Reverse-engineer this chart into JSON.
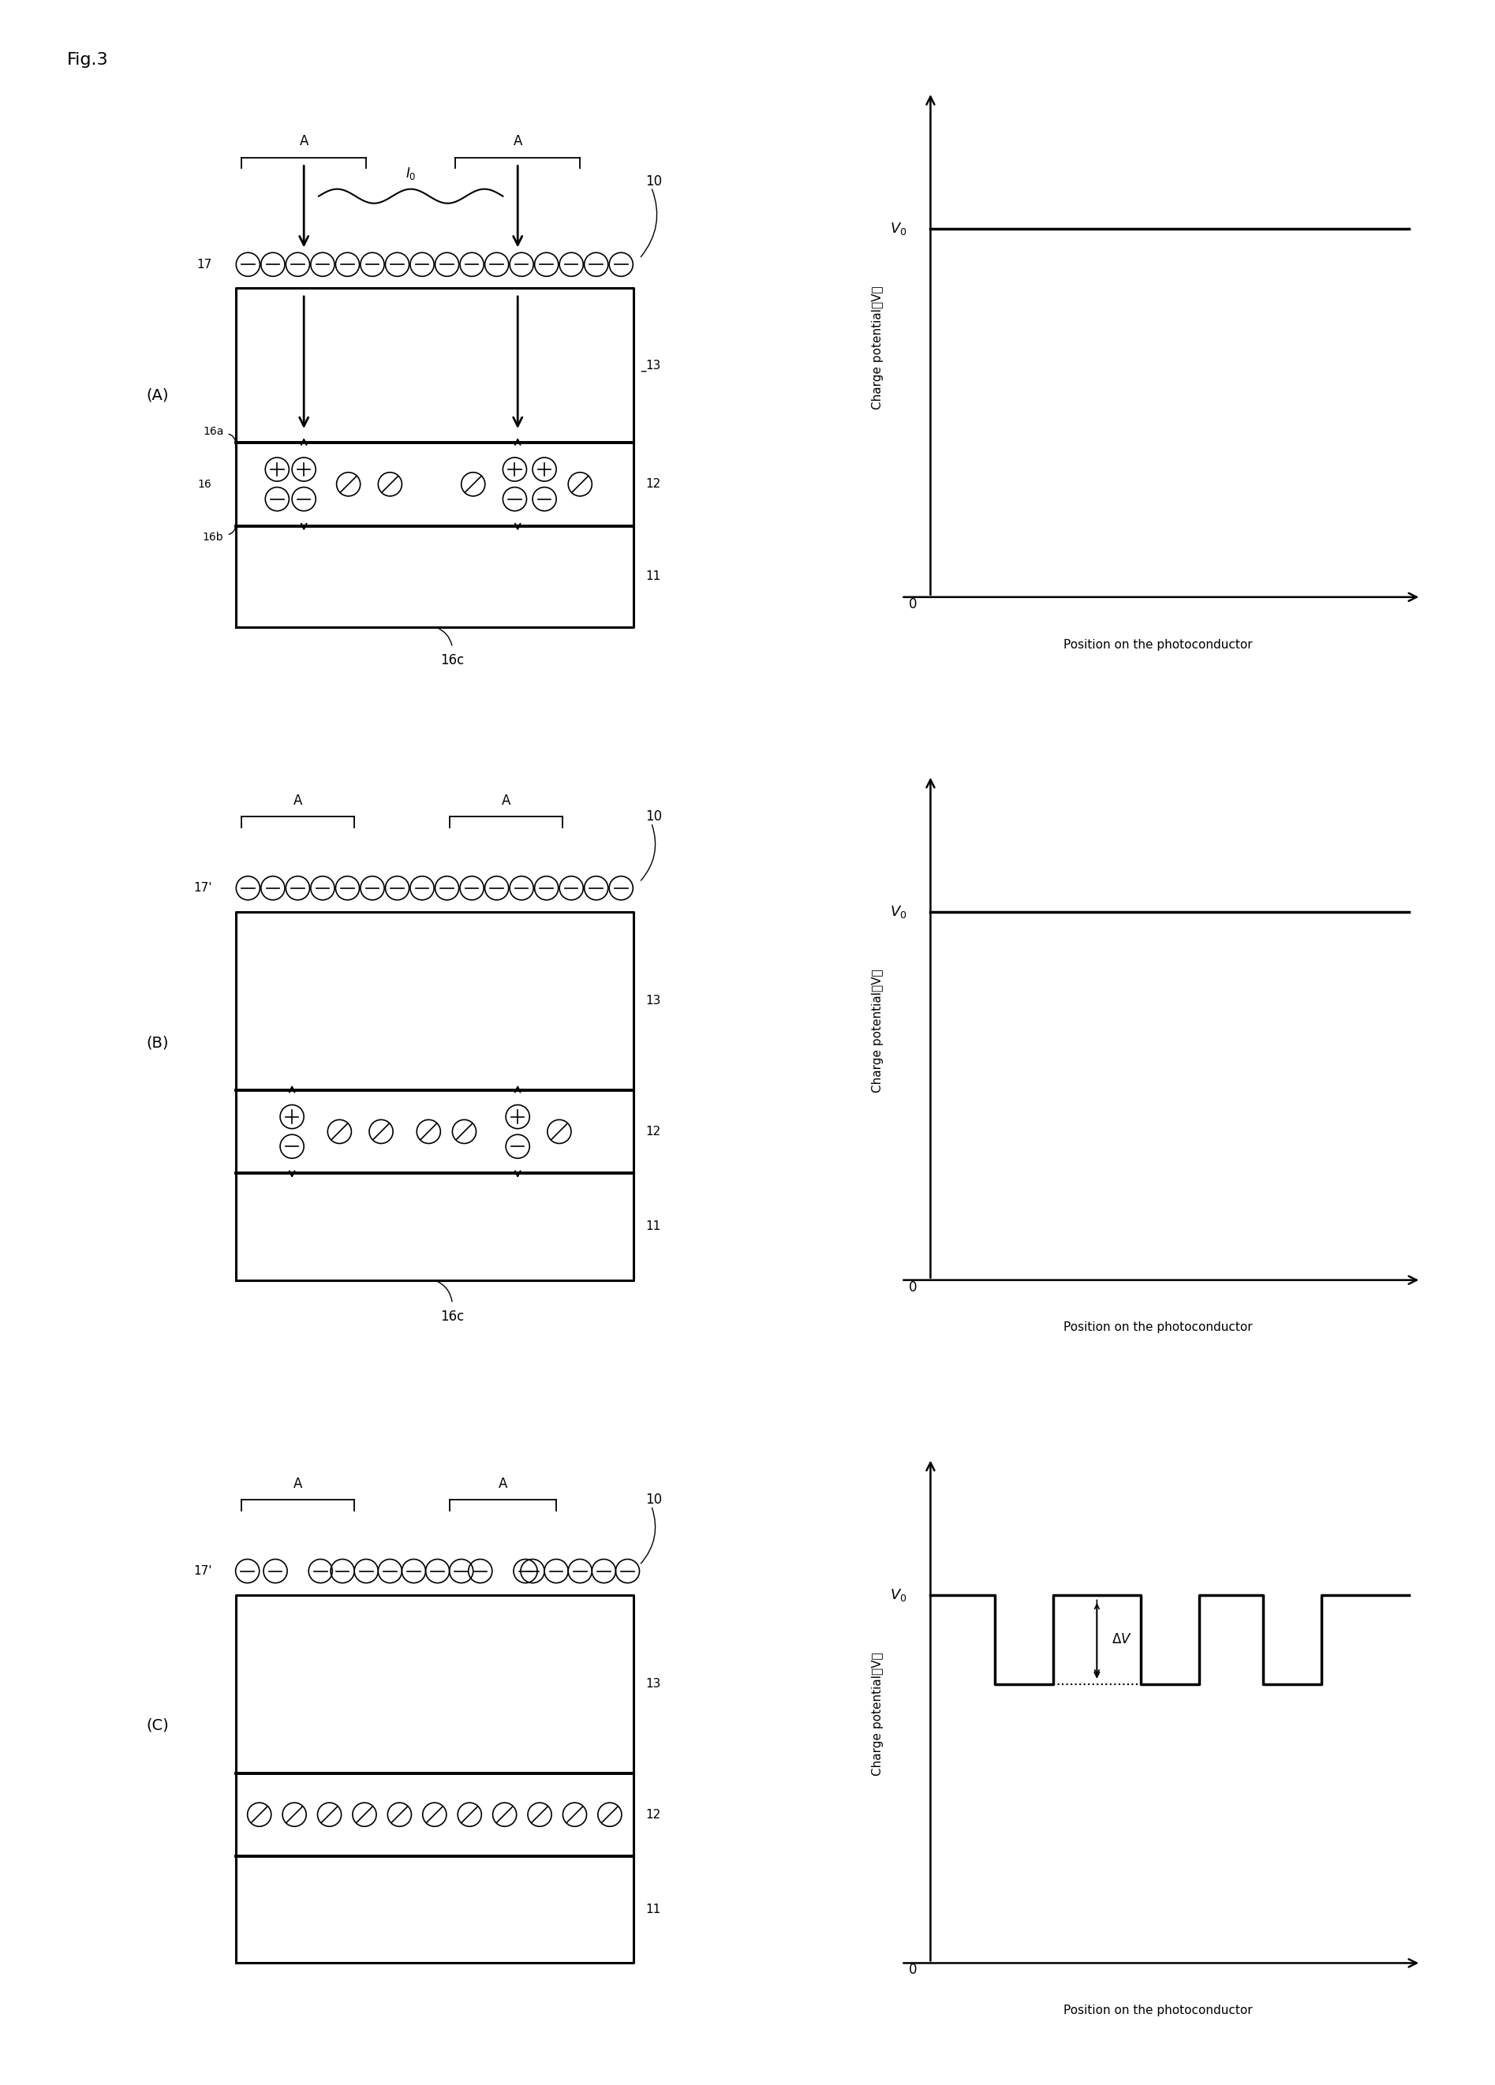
{
  "fig_label": "Fig.3",
  "background_color": "#ffffff",
  "panel_labels": [
    "(A)",
    "(B)",
    "(C)"
  ],
  "xlabel": "Position on the photoconductor",
  "ylabel": "Charge potential（V）",
  "V0_label": "V₀",
  "DeltaV_label": "ΔV",
  "beam_label": "I₀",
  "bracket_label": "A",
  "device_label": "10"
}
